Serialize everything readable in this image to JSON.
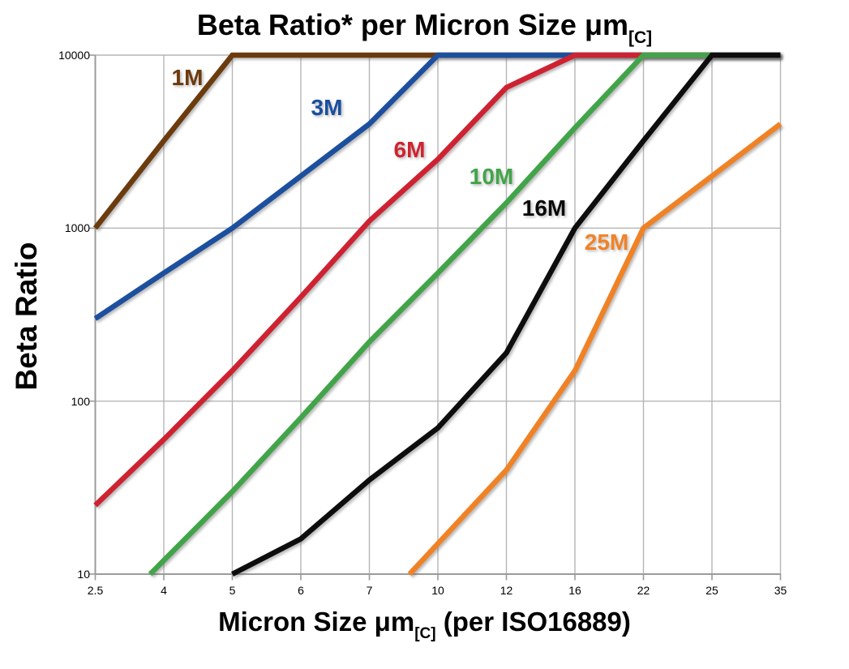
{
  "chart": {
    "title": {
      "main": "Beta Ratio* per Micron Size μm",
      "sub": "[C]"
    },
    "x_axis": {
      "title_pre": "Micron Size μm",
      "title_sub": "[C]",
      "title_post": " (per ISO16889)",
      "tick_labels": [
        "2.5",
        "4",
        "5",
        "6",
        "7",
        "10",
        "12",
        "16",
        "22",
        "25",
        "35"
      ]
    },
    "y_axis": {
      "title": "Beta Ratio",
      "tick_labels": [
        "10000",
        "1000",
        "100",
        "10"
      ],
      "scale": "log",
      "range": [
        10,
        10000
      ]
    },
    "grid_color": "#b6b6b6",
    "axis_color": "#9b9b9b",
    "background": "#ffffff"
  },
  "chart_data": {
    "type": "line",
    "title": "Beta Ratio* per Micron Size μm[C]",
    "xlabel": "Micron Size μm[C] (per ISO16889)",
    "ylabel": "Beta Ratio",
    "x_scale": "categorical",
    "y_scale": "log10",
    "ylim": [
      10,
      10000
    ],
    "grid": true,
    "legend_position": "inline-labels",
    "categories": [
      2.5,
      4,
      5,
      6,
      7,
      10,
      12,
      16,
      22,
      25,
      35
    ],
    "series": [
      {
        "name": "1M",
        "color": "#6C3B0F",
        "values": [
          1000,
          3200,
          10000,
          10000,
          10000,
          10000,
          10000,
          10000,
          10000,
          10000,
          10000
        ]
      },
      {
        "name": "3M",
        "color": "#1A4F9E",
        "values": [
          300,
          550,
          1000,
          2000,
          4000,
          10000,
          10000,
          10000,
          10000,
          10000,
          10000
        ]
      },
      {
        "name": "6M",
        "color": "#CE2430",
        "values": [
          25,
          60,
          150,
          400,
          1100,
          2500,
          6500,
          10000,
          10000,
          10000,
          10000
        ]
      },
      {
        "name": "10M",
        "color": "#42A44A",
        "values": [
          null,
          12,
          30,
          80,
          220,
          550,
          1400,
          3800,
          10000,
          10000,
          10000
        ]
      },
      {
        "name": "16M",
        "color": "#0a0a0a",
        "values": [
          null,
          null,
          10,
          16,
          35,
          70,
          190,
          1000,
          3200,
          10000,
          10000
        ]
      },
      {
        "name": "25M",
        "color": "#F08227",
        "values": [
          null,
          null,
          null,
          null,
          null,
          15,
          40,
          150,
          1000,
          2000,
          4000
        ]
      }
    ]
  }
}
